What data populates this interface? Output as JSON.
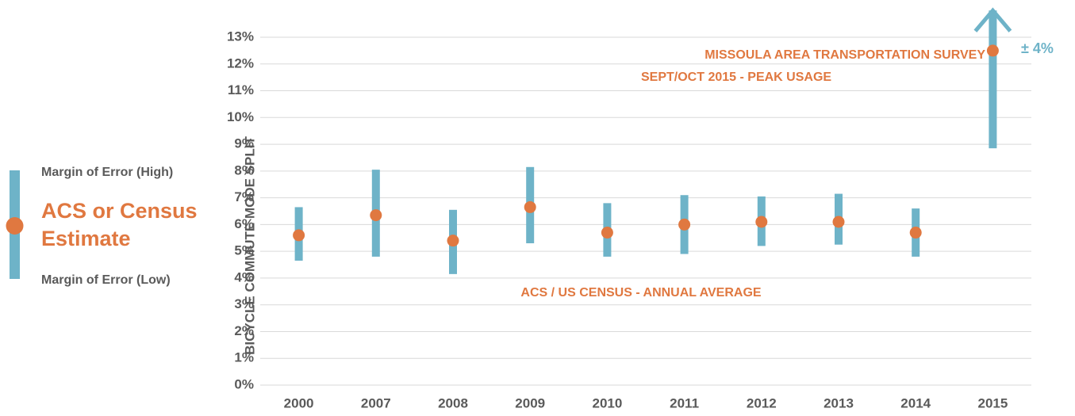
{
  "chart_data": {
    "type": "errorbar",
    "y_label": "BICYCLE COMMUTE MODE SPLIT",
    "categories": [
      "2000",
      "2007",
      "2008",
      "2009",
      "2010",
      "2011",
      "2012",
      "2013",
      "2014",
      "2015"
    ],
    "values": [
      5.6,
      6.35,
      5.4,
      6.65,
      5.7,
      6.0,
      6.1,
      6.1,
      5.7,
      12.5
    ],
    "low": [
      4.65,
      4.8,
      4.15,
      5.3,
      4.8,
      4.9,
      5.2,
      5.25,
      4.8,
      8.85
    ],
    "high": [
      6.65,
      8.05,
      6.55,
      8.15,
      6.8,
      7.1,
      7.05,
      7.15,
      6.6,
      14
    ],
    "point_color": "#e07840",
    "bar_color": "#6eb3c8",
    "ylim": [
      0,
      13
    ],
    "yticks": [
      {
        "value": 0,
        "label": "0%"
      },
      {
        "value": 1,
        "label": "1%"
      },
      {
        "value": 2,
        "label": "2%"
      },
      {
        "value": 3,
        "label": "3%"
      },
      {
        "value": 4,
        "label": "4%"
      },
      {
        "value": 5,
        "label": "5%"
      },
      {
        "value": 6,
        "label": "6%"
      },
      {
        "value": 7,
        "label": "7%"
      },
      {
        "value": 8,
        "label": "8%"
      },
      {
        "value": 9,
        "label": "9%"
      },
      {
        "value": 10,
        "label": "10%"
      },
      {
        "value": 11,
        "label": "11%"
      },
      {
        "value": 12,
        "label": "12%"
      },
      {
        "value": 13,
        "label": "13%"
      }
    ],
    "grid": true,
    "legend": {
      "high": "Margin of Error (High)",
      "estimate": [
        "ACS or Census",
        "Estimate"
      ],
      "low": "Margin of Error (Low)"
    },
    "annotations": {
      "survey": [
        "MISSOULA AREA TRANSPORTATION SURVEY",
        "SEPT/OCT 2015 - PEAK USAGE"
      ],
      "census": "ACS / US CENSUS - ANNUAL AVERAGE",
      "error": "± 4%"
    }
  }
}
